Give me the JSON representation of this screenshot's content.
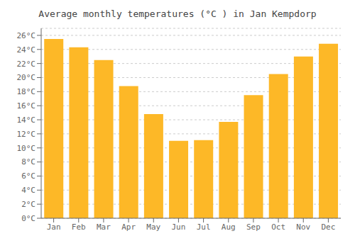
{
  "chart_data": {
    "type": "bar",
    "title": "Average monthly temperatures (°C ) in Jan Kempdorp",
    "categories": [
      "Jan",
      "Feb",
      "Mar",
      "Apr",
      "May",
      "Jun",
      "Jul",
      "Aug",
      "Sep",
      "Oct",
      "Nov",
      "Dec"
    ],
    "values": [
      25.5,
      24.3,
      22.5,
      18.8,
      14.8,
      11.0,
      11.1,
      13.7,
      17.5,
      20.5,
      23.0,
      24.8
    ],
    "color": "#FDB827",
    "ylim": [
      0,
      27
    ],
    "yticks": [
      {
        "value": 0,
        "label": "0°C"
      },
      {
        "value": 2,
        "label": "2°C"
      },
      {
        "value": 4,
        "label": "4°C"
      },
      {
        "value": 6,
        "label": "6°C"
      },
      {
        "value": 8,
        "label": "8°C"
      },
      {
        "value": 10,
        "label": "10°C"
      },
      {
        "value": 12,
        "label": "12°C"
      },
      {
        "value": 14,
        "label": "14°C"
      },
      {
        "value": 16,
        "label": "16°C"
      },
      {
        "value": 18,
        "label": "18°C"
      },
      {
        "value": 20,
        "label": "20°C"
      },
      {
        "value": 22,
        "label": "22°C"
      },
      {
        "value": 24,
        "label": "24°C"
      },
      {
        "value": 26,
        "label": "26°C"
      }
    ],
    "grid": true
  }
}
